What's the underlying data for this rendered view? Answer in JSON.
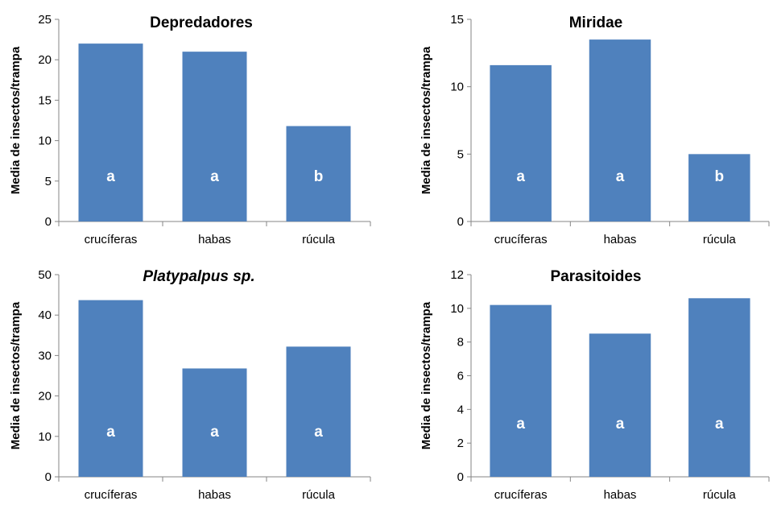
{
  "chart_data": [
    {
      "type": "bar",
      "title": "Depredadores",
      "title_italic": false,
      "ylabel": "Media de insectos/trampa",
      "categories": [
        "crucíferas",
        "habas",
        "rúcula"
      ],
      "values": [
        22,
        21,
        11.8
      ],
      "bar_labels": [
        "a",
        "a",
        "b"
      ],
      "ylim": [
        0,
        25
      ],
      "yticks": [
        0,
        5,
        10,
        15,
        20,
        25
      ],
      "bar_color": "#4F81BD"
    },
    {
      "type": "bar",
      "title": "Miridae",
      "title_italic": false,
      "ylabel": "Media de insectos/trampa",
      "categories": [
        "crucíferas",
        "habas",
        "rúcula"
      ],
      "values": [
        11.6,
        13.5,
        5
      ],
      "bar_labels": [
        "a",
        "a",
        "b"
      ],
      "ylim": [
        0,
        15
      ],
      "yticks": [
        0,
        5,
        10,
        15
      ],
      "bar_color": "#4F81BD"
    },
    {
      "type": "bar",
      "title": "Platypalpus sp.",
      "title_italic": true,
      "ylabel": "Media de insectos/trampa",
      "categories": [
        "crucíferas",
        "habas",
        "rúcula"
      ],
      "values": [
        43.7,
        26.8,
        32.2
      ],
      "bar_labels": [
        "a",
        "a",
        "a"
      ],
      "ylim": [
        0,
        50
      ],
      "yticks": [
        0,
        10,
        20,
        30,
        40,
        50
      ],
      "bar_color": "#4F81BD"
    },
    {
      "type": "bar",
      "title": "Parasitoides",
      "title_italic": false,
      "ylabel": "Media de insectos/trampa",
      "categories": [
        "crucíferas",
        "habas",
        "rúcula"
      ],
      "values": [
        10.2,
        8.5,
        10.6
      ],
      "bar_labels": [
        "a",
        "a",
        "a"
      ],
      "ylim": [
        0,
        12
      ],
      "yticks": [
        0,
        2,
        4,
        6,
        8,
        10,
        12
      ],
      "bar_color": "#4F81BD"
    }
  ]
}
